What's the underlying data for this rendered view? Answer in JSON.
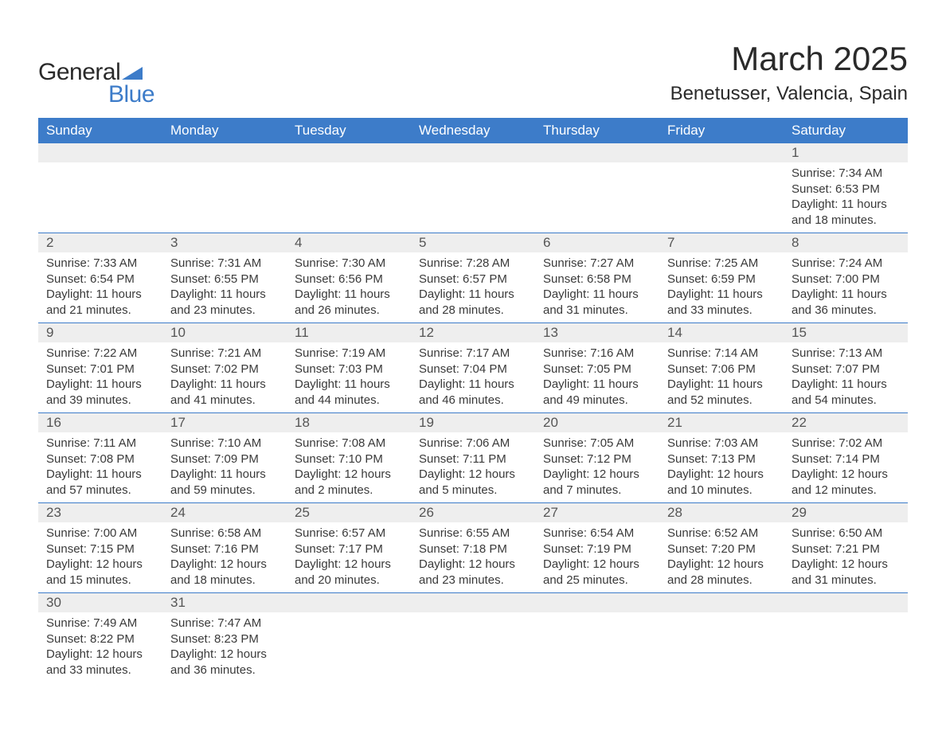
{
  "brand": {
    "name1": "General",
    "name2": "Blue",
    "sail_color": "#3d7cc9"
  },
  "title": "March 2025",
  "location": "Benetusser, Valencia, Spain",
  "colors": {
    "header_bg": "#3d7cc9",
    "header_fg": "#ffffff",
    "daynum_bg": "#eeeeee",
    "daynum_fg": "#555555",
    "row_border": "#3d7cc9",
    "body_text": "#3a3a3a",
    "page_bg": "#ffffff"
  },
  "fonts": {
    "title_size_pt": 32,
    "location_size_pt": 18,
    "header_size_pt": 13,
    "daynum_size_pt": 13,
    "body_size_pt": 11
  },
  "weekdays": [
    "Sunday",
    "Monday",
    "Tuesday",
    "Wednesday",
    "Thursday",
    "Friday",
    "Saturday"
  ],
  "weeks": [
    [
      null,
      null,
      null,
      null,
      null,
      null,
      {
        "n": "1",
        "sunrise": "7:34 AM",
        "sunset": "6:53 PM",
        "dl": "11 hours and 18 minutes."
      }
    ],
    [
      {
        "n": "2",
        "sunrise": "7:33 AM",
        "sunset": "6:54 PM",
        "dl": "11 hours and 21 minutes."
      },
      {
        "n": "3",
        "sunrise": "7:31 AM",
        "sunset": "6:55 PM",
        "dl": "11 hours and 23 minutes."
      },
      {
        "n": "4",
        "sunrise": "7:30 AM",
        "sunset": "6:56 PM",
        "dl": "11 hours and 26 minutes."
      },
      {
        "n": "5",
        "sunrise": "7:28 AM",
        "sunset": "6:57 PM",
        "dl": "11 hours and 28 minutes."
      },
      {
        "n": "6",
        "sunrise": "7:27 AM",
        "sunset": "6:58 PM",
        "dl": "11 hours and 31 minutes."
      },
      {
        "n": "7",
        "sunrise": "7:25 AM",
        "sunset": "6:59 PM",
        "dl": "11 hours and 33 minutes."
      },
      {
        "n": "8",
        "sunrise": "7:24 AM",
        "sunset": "7:00 PM",
        "dl": "11 hours and 36 minutes."
      }
    ],
    [
      {
        "n": "9",
        "sunrise": "7:22 AM",
        "sunset": "7:01 PM",
        "dl": "11 hours and 39 minutes."
      },
      {
        "n": "10",
        "sunrise": "7:21 AM",
        "sunset": "7:02 PM",
        "dl": "11 hours and 41 minutes."
      },
      {
        "n": "11",
        "sunrise": "7:19 AM",
        "sunset": "7:03 PM",
        "dl": "11 hours and 44 minutes."
      },
      {
        "n": "12",
        "sunrise": "7:17 AM",
        "sunset": "7:04 PM",
        "dl": "11 hours and 46 minutes."
      },
      {
        "n": "13",
        "sunrise": "7:16 AM",
        "sunset": "7:05 PM",
        "dl": "11 hours and 49 minutes."
      },
      {
        "n": "14",
        "sunrise": "7:14 AM",
        "sunset": "7:06 PM",
        "dl": "11 hours and 52 minutes."
      },
      {
        "n": "15",
        "sunrise": "7:13 AM",
        "sunset": "7:07 PM",
        "dl": "11 hours and 54 minutes."
      }
    ],
    [
      {
        "n": "16",
        "sunrise": "7:11 AM",
        "sunset": "7:08 PM",
        "dl": "11 hours and 57 minutes."
      },
      {
        "n": "17",
        "sunrise": "7:10 AM",
        "sunset": "7:09 PM",
        "dl": "11 hours and 59 minutes."
      },
      {
        "n": "18",
        "sunrise": "7:08 AM",
        "sunset": "7:10 PM",
        "dl": "12 hours and 2 minutes."
      },
      {
        "n": "19",
        "sunrise": "7:06 AM",
        "sunset": "7:11 PM",
        "dl": "12 hours and 5 minutes."
      },
      {
        "n": "20",
        "sunrise": "7:05 AM",
        "sunset": "7:12 PM",
        "dl": "12 hours and 7 minutes."
      },
      {
        "n": "21",
        "sunrise": "7:03 AM",
        "sunset": "7:13 PM",
        "dl": "12 hours and 10 minutes."
      },
      {
        "n": "22",
        "sunrise": "7:02 AM",
        "sunset": "7:14 PM",
        "dl": "12 hours and 12 minutes."
      }
    ],
    [
      {
        "n": "23",
        "sunrise": "7:00 AM",
        "sunset": "7:15 PM",
        "dl": "12 hours and 15 minutes."
      },
      {
        "n": "24",
        "sunrise": "6:58 AM",
        "sunset": "7:16 PM",
        "dl": "12 hours and 18 minutes."
      },
      {
        "n": "25",
        "sunrise": "6:57 AM",
        "sunset": "7:17 PM",
        "dl": "12 hours and 20 minutes."
      },
      {
        "n": "26",
        "sunrise": "6:55 AM",
        "sunset": "7:18 PM",
        "dl": "12 hours and 23 minutes."
      },
      {
        "n": "27",
        "sunrise": "6:54 AM",
        "sunset": "7:19 PM",
        "dl": "12 hours and 25 minutes."
      },
      {
        "n": "28",
        "sunrise": "6:52 AM",
        "sunset": "7:20 PM",
        "dl": "12 hours and 28 minutes."
      },
      {
        "n": "29",
        "sunrise": "6:50 AM",
        "sunset": "7:21 PM",
        "dl": "12 hours and 31 minutes."
      }
    ],
    [
      {
        "n": "30",
        "sunrise": "7:49 AM",
        "sunset": "8:22 PM",
        "dl": "12 hours and 33 minutes."
      },
      {
        "n": "31",
        "sunrise": "7:47 AM",
        "sunset": "8:23 PM",
        "dl": "12 hours and 36 minutes."
      },
      null,
      null,
      null,
      null,
      null
    ]
  ],
  "labels": {
    "sunrise": "Sunrise: ",
    "sunset": "Sunset: ",
    "daylight": "Daylight: "
  }
}
